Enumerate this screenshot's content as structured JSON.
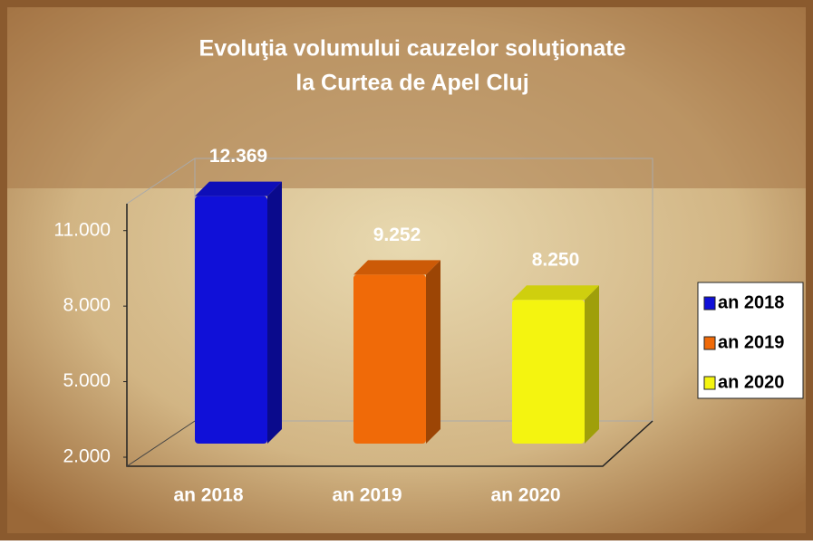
{
  "chart_data": {
    "type": "bar3d",
    "title": [
      "Evoluţia volumului cauzelor soluţionate",
      "la  Curtea de Apel Cluj"
    ],
    "categories": [
      "an 2018",
      "an 2019",
      "an 2020"
    ],
    "values": [
      12369,
      9252,
      8250
    ],
    "value_labels": [
      "12.369",
      "9.252",
      "8.250"
    ],
    "colors": [
      "#1010d8",
      "#f06a08",
      "#f4f410"
    ],
    "ylim": [
      2000,
      12500
    ],
    "yticks": [
      {
        "value": 2000,
        "label": "2.000"
      },
      {
        "value": 5000,
        "label": "5.000"
      },
      {
        "value": 8000,
        "label": "8.000"
      },
      {
        "value": 11000,
        "label": "11.000"
      }
    ],
    "legend": "right"
  }
}
